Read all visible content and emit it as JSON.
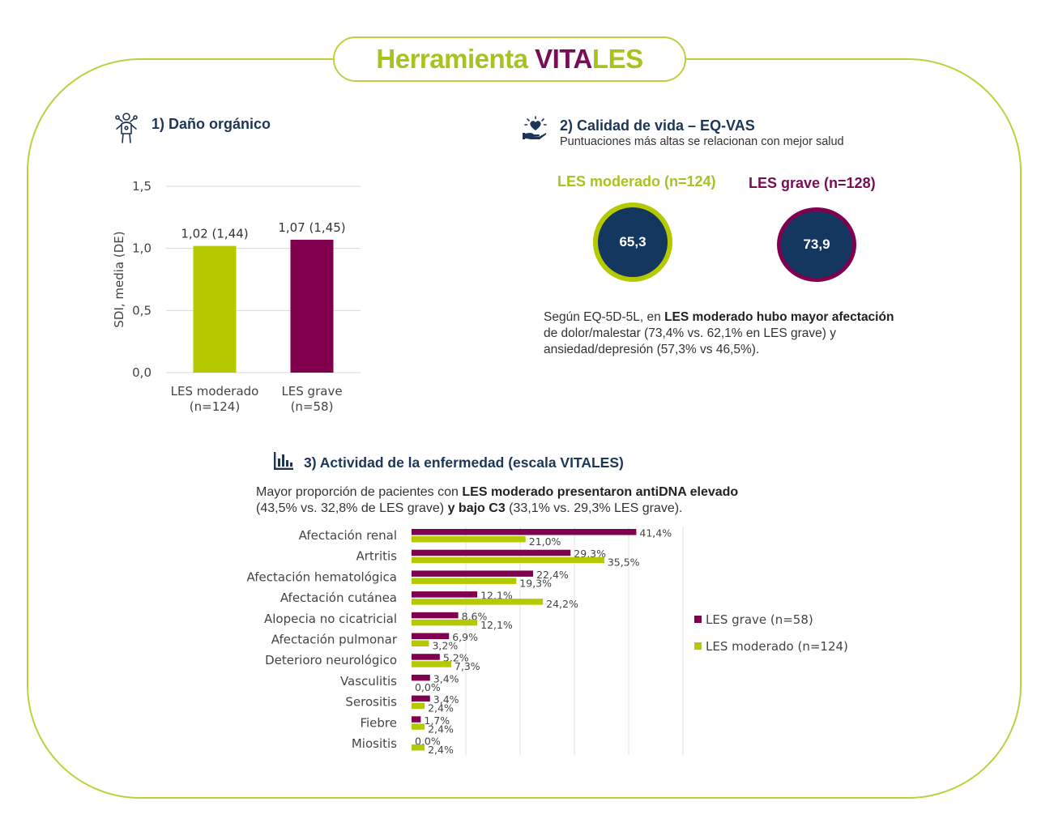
{
  "header": {
    "title_part1": "Herramienta ",
    "title_vita": "VITA",
    "title_les": "LES"
  },
  "colors": {
    "moderado": "#b5c900",
    "grave": "#80004f",
    "ring_fill": "#143760",
    "heading": "#1d3557",
    "frame": "#bfcf3e"
  },
  "section1": {
    "icon": "body-organs-icon",
    "heading": "1) Daño orgánico"
  },
  "section2": {
    "icon": "heart-hand-icon",
    "heading": "2) Calidad de vida – EQ-VAS",
    "subtitle": "Puntuaciones más altas se relacionan con mejor salud",
    "moderado_label": "LES moderado (n=124)",
    "grave_label": "LES grave (n=128)",
    "moderado_value": "65,3",
    "grave_value": "73,9",
    "para_1": "Según EQ-5D-5L, en ",
    "para_bold": "LES moderado hubo mayor afectación",
    "para_2": "de dolor/malestar (73,4% vs. 62,1% en LES grave) y",
    "para_3": "ansiedad/depresión (57,3% vs 46,5%)."
  },
  "section3": {
    "icon": "bar-chart-icon",
    "heading": "3) Actividad de la enfermedad (escala VITALES)",
    "para_1": "Mayor proporción de pacientes con ",
    "para_bold1": "LES moderado presentaron antiDNA elevado",
    "para_2": "(43,5% vs. 32,8% de LES grave) ",
    "para_bold2": "y bajo C3",
    "para_3": " (33,1% vs. 29,3% LES grave)."
  },
  "chart_data": [
    {
      "type": "bar",
      "ylabel": "SDI, media (DE)",
      "ylim": [
        0,
        1.5
      ],
      "yticks": [
        "0,0",
        "0,5",
        "1,0",
        "1,5"
      ],
      "categories": [
        {
          "line1": "LES moderado",
          "line2": "(n=124)"
        },
        {
          "line1": "LES grave",
          "line2": "(n=58)"
        }
      ],
      "values": [
        1.02,
        1.07
      ],
      "data_labels": [
        "1,02 (1,44)",
        "1,07 (1,45)"
      ],
      "grid": true
    },
    {
      "type": "bar",
      "orientation": "horizontal",
      "categories": [
        "Afectación renal",
        "Artritis",
        "Afectación hematológica",
        "Afectación cutánea",
        "Alopecia no cicatricial",
        "Afectación pulmonar",
        "Deterioro neurológico",
        "Vasculitis",
        "Serositis",
        "Fiebre",
        "Miositis"
      ],
      "series": [
        {
          "name": "LES grave (n=58)",
          "values": [
            41.4,
            29.3,
            22.4,
            12.1,
            8.6,
            6.9,
            5.2,
            3.4,
            3.4,
            1.7,
            0.0
          ],
          "labels": [
            "41,4%",
            "29,3%",
            "22,4%",
            "12,1%",
            "8,6%",
            "6,9%",
            "5,2%",
            "3,4%",
            "3,4%",
            "1,7%",
            "0,0%"
          ]
        },
        {
          "name": "LES moderado (n=124)",
          "values": [
            21.0,
            35.5,
            19.3,
            24.2,
            12.1,
            3.2,
            7.3,
            0.0,
            2.4,
            2.4,
            2.4
          ],
          "labels": [
            "21,0%",
            "35,5%",
            "19,3%",
            "24,2%",
            "12,1%",
            "3,2%",
            "7,3%",
            "0,0%",
            "2,4%",
            "2,4%",
            "2,4%"
          ]
        }
      ],
      "xlim": [
        0,
        50
      ],
      "grid": true,
      "legend": "right"
    }
  ]
}
